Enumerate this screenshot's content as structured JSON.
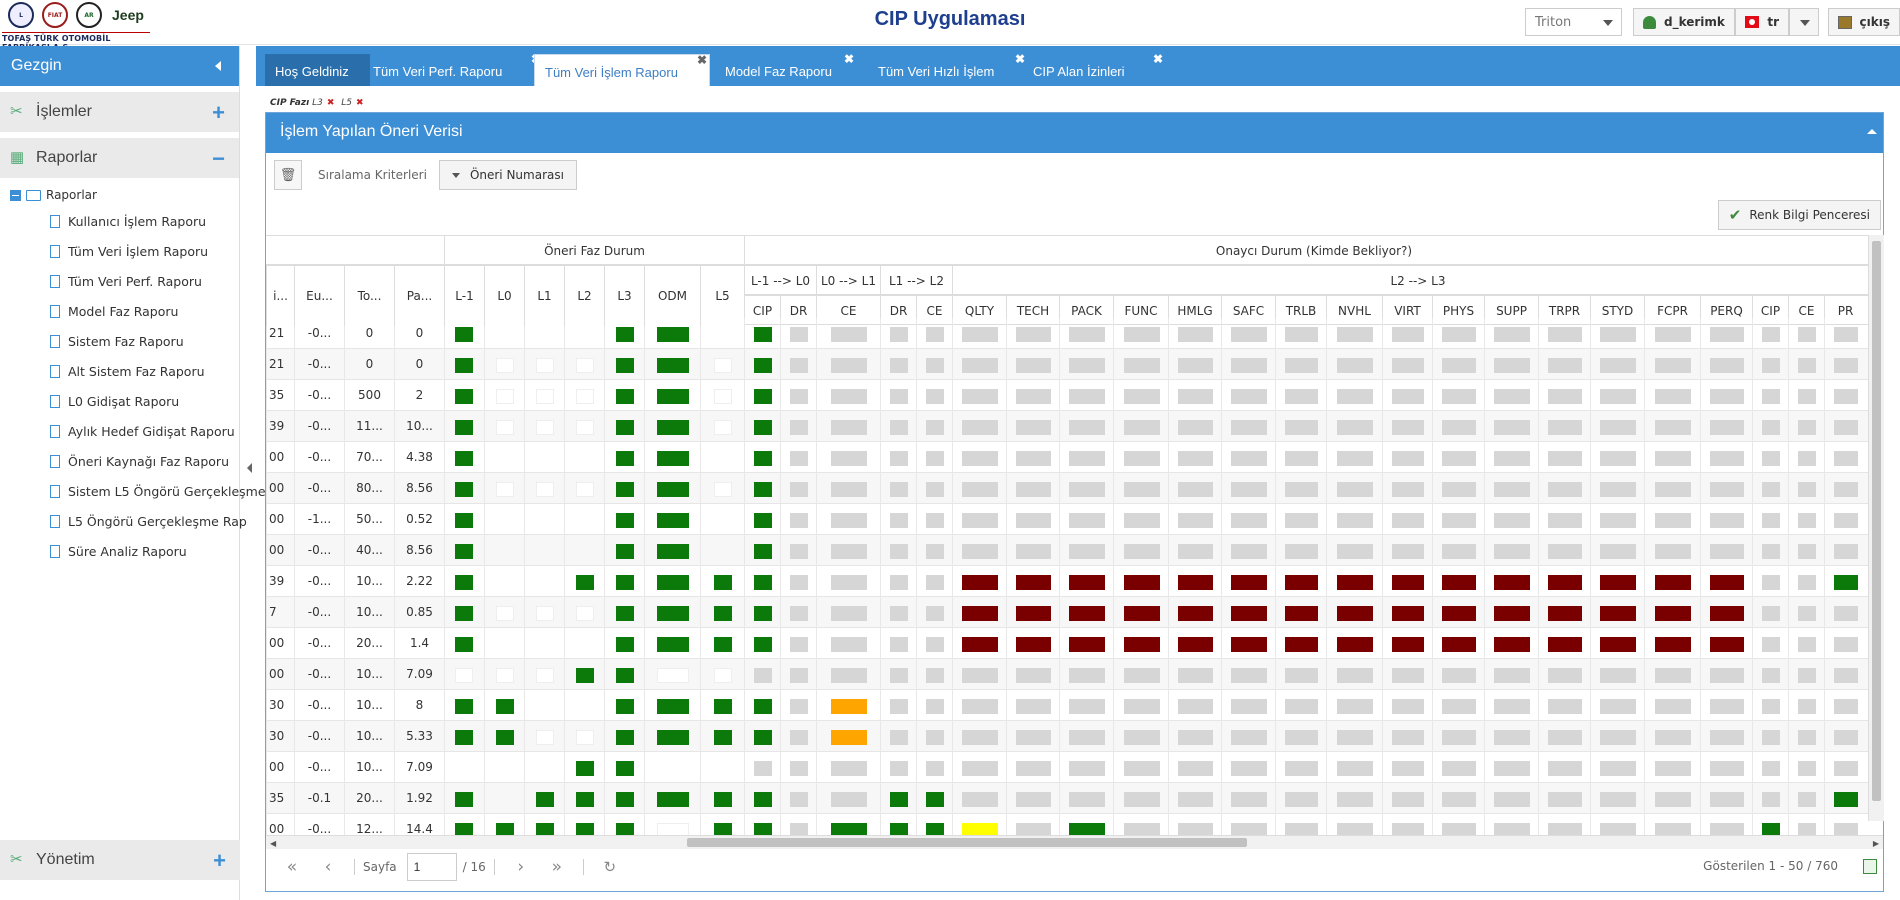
{
  "header": {
    "company": "TOFAŞ TÜRK OTOMOBİL FABRİKASI A.Ş.",
    "brand_jeep": "Jeep",
    "title": "CIP Uygulaması",
    "platform_select": "Triton",
    "user": "d_kerimk",
    "lang": "tr",
    "exit": "çıkış"
  },
  "sidebar": {
    "title": "Gezgin",
    "sections": {
      "islemler": "İşlemler",
      "raporlar": "Raporlar",
      "yonetim": "Yönetim"
    },
    "tree_root": "Raporlar",
    "items": [
      "Kullanıcı İşlem Raporu",
      "Tüm Veri İşlem Raporu",
      "Tüm Veri Perf. Raporu",
      "Model Faz Raporu",
      "Sistem Faz Raporu",
      "Alt Sistem Faz Raporu",
      "L0 Gidişat Raporu",
      "Aylık Hedef Gidişat Raporu",
      "Öneri Kaynağı Faz Raporu",
      "Sistem L5 Öngörü Gerçekleşme",
      "L5 Öngörü Gerçekleşme Rap",
      "Süre Analiz Raporu"
    ]
  },
  "tabs": [
    {
      "label": "Hoş Geldiniz",
      "closable": false
    },
    {
      "label": "Tüm Veri Perf. Raporu",
      "closable": true
    },
    {
      "label": "Tüm Veri İşlem Raporu",
      "closable": true,
      "active": true
    },
    {
      "label": "Model Faz Raporu",
      "closable": true
    },
    {
      "label": "Tüm Veri Hızlı İşlem",
      "closable": true
    },
    {
      "label": "CIP Alan İzinleri",
      "closable": true
    }
  ],
  "breadcrumb": {
    "label": "CIP Fazı",
    "filters": [
      "L3",
      "L5"
    ]
  },
  "panel": {
    "title": "İşlem Yapılan Öneri Verisi",
    "sort_label": "Sıralama Kriterleri",
    "sort_button": "Öneri Numarası",
    "color_window": "Renk Bilgi Penceresi"
  },
  "grid": {
    "group_headers": {
      "phase": "Öneri Faz Durum",
      "approver": "Onaycı Durum (Kimde Bekliyor?)"
    },
    "sub_groups": {
      "l_1_l0": "L-1 --> L0",
      "l0_l1": "L0 --> L1",
      "l1_l2": "L1 --> L2",
      "l2_l3": "L2 --> L3"
    },
    "left_headers": [
      "i...",
      "Eu...",
      "To...",
      "Pa..."
    ],
    "phase_headers": [
      "L-1",
      "L0",
      "L1",
      "L2",
      "L3",
      "ODM",
      "L5"
    ],
    "approver_headers": [
      "CIP",
      "DR",
      "CE",
      "DR",
      "CE",
      "QLTY",
      "TECH",
      "PACK",
      "FUNC",
      "HMLG",
      "SAFC",
      "TRLB",
      "NVHL",
      "VIRT",
      "PHYS",
      "SUPP",
      "TRPR",
      "STYD",
      "FCPR",
      "PERQ",
      "CIP",
      "CE",
      "PR"
    ],
    "rows": [
      {
        "c": [
          "21",
          "-0...",
          "0",
          "0"
        ],
        "p": "g.....g.g.",
        "a": "g:gr:gr:gr:gr:gr:gr:gr:gr:gr:gr:gr:gr:gr:gr:gr:gr:gr:gr:gr:gr:gr:gr"
      },
      {
        "c": [
          "21",
          "-0...",
          "0",
          "0"
        ],
        "p": "g w w w g g w",
        "a": "g gr gr gr gr gr gr gr gr gr gr gr gr gr gr gr gr gr gr gr gr gr gr"
      },
      {
        "c": [
          "35",
          "-0...",
          "500",
          "2"
        ],
        "p": "g w w w g g w",
        "a": "g gr gr gr gr gr gr gr gr gr gr gr gr gr gr gr gr gr gr gr gr gr gr"
      },
      {
        "c": [
          "39",
          "-0...",
          "11...",
          "10..."
        ],
        "p": "g w w w g g w",
        "a": "g gr gr gr gr gr gr gr gr gr gr gr gr gr gr gr gr gr gr gr gr gr gr"
      },
      {
        "c": [
          "00",
          "-0...",
          "70...",
          "4.38"
        ],
        "p": "g - - - g g -",
        "a": "g gr gr gr gr gr gr gr gr gr gr gr gr gr gr gr gr gr gr gr gr gr gr"
      },
      {
        "c": [
          "00",
          "-0...",
          "80...",
          "8.56"
        ],
        "p": "g w w w g g w",
        "a": "g gr gr gr gr gr gr gr gr gr gr gr gr gr gr gr gr gr gr gr gr gr gr"
      },
      {
        "c": [
          "00",
          "-1...",
          "50...",
          "0.52"
        ],
        "p": "g - - - g g -",
        "a": "g gr gr gr gr gr gr gr gr gr gr gr gr gr gr gr gr gr gr gr gr gr gr"
      },
      {
        "c": [
          "00",
          "-0...",
          "40...",
          "8.56"
        ],
        "p": "g - - - g g -",
        "a": "g gr gr gr gr gr gr gr gr gr gr gr gr gr gr gr gr gr gr gr gr gr gr"
      },
      {
        "c": [
          "39",
          "-0...",
          "10...",
          "2.22"
        ],
        "p": "g - - g g g g",
        "a": "g gr gr gr gr dr dr dr dr dr dr dr dr dr dr dr dr dr dr dr gr gr g"
      },
      {
        "c": [
          "7",
          "-0...",
          "10...",
          "0.85"
        ],
        "p": "g w w w g g g",
        "a": "g gr gr gr gr dr dr dr dr dr dr dr dr dr dr dr dr dr dr dr gr gr gr"
      },
      {
        "c": [
          "00",
          "-0...",
          "20...",
          "1.4"
        ],
        "p": "g - - - g g g",
        "a": "g gr gr gr gr dr dr dr dr dr dr dr dr dr dr dr dr dr dr dr gr gr gr"
      },
      {
        "c": [
          "00",
          "-0...",
          "10...",
          "7.09"
        ],
        "p": "w w w g g w w",
        "a": "gr gr gr gr gr gr gr gr gr gr gr gr gr gr gr gr gr gr gr gr gr gr gr"
      },
      {
        "c": [
          "30",
          "-0...",
          "10...",
          "8"
        ],
        "p": "g g - - g g g",
        "a": "g gr or gr gr gr gr gr gr gr gr gr gr gr gr gr gr gr gr gr gr gr gr"
      },
      {
        "c": [
          "30",
          "-0...",
          "10...",
          "5.33"
        ],
        "p": "g g w w g g g",
        "a": "g gr or gr gr gr gr gr gr gr gr gr gr gr gr gr gr gr gr gr gr gr gr"
      },
      {
        "c": [
          "00",
          "-0...",
          "10...",
          "7.09"
        ],
        "p": "- - - g g - -",
        "a": "gr gr gr gr gr gr gr gr gr gr gr gr gr gr gr gr gr gr gr gr gr gr gr"
      },
      {
        "c": [
          "35",
          "-0.1",
          "20...",
          "1.92"
        ],
        "p": "g - g g g g g",
        "a": "g gr gr g g gr gr gr gr gr gr gr gr gr gr gr gr gr gr gr gr gr g"
      },
      {
        "c": [
          "00",
          "-0...",
          "12...",
          "14.4"
        ],
        "p": "g g g g g w g",
        "a": "g gr g g g ye gr g gr gr gr gr gr gr gr gr gr gr gr gr g gr gr"
      }
    ]
  },
  "pager": {
    "page_label": "Sayfa",
    "page": "1",
    "total": "/ 16",
    "showing": "Gösterilen 1 - 50 / 760"
  },
  "colors": {
    "accent": "#3d8fd5",
    "green": "#0b7a0b",
    "darkred": "#7a0000",
    "orange": "#ffa500",
    "yellow": "#ffff00",
    "gray": "#d6d6d6"
  }
}
